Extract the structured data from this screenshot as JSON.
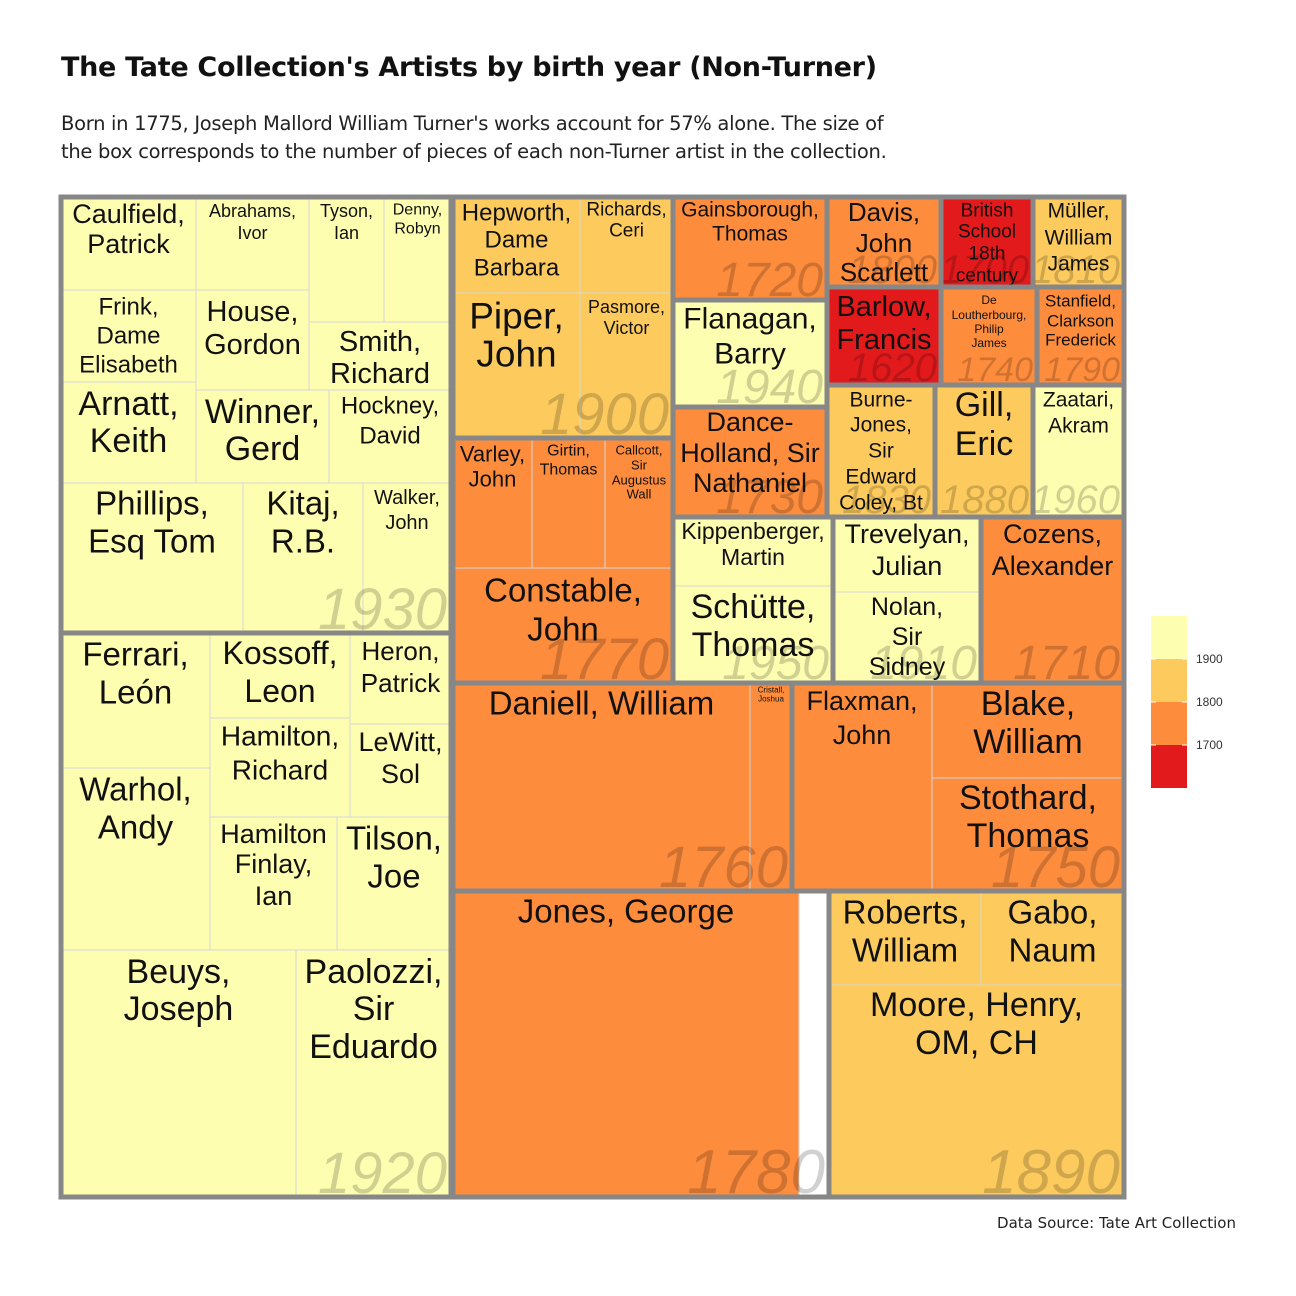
{
  "chart_data": {
    "type": "treemap",
    "title": "The Tate Collection's Artists by birth year (Non-Turner)",
    "subtitle": [
      "Born in 1775, Joseph Mallord William Turner's works account for 57% alone. The size of",
      "the box corresponds to the number of pieces of each non-Turner artist in the collection."
    ],
    "caption": "Data Source: Tate Art Collection",
    "legend": {
      "placement": "right",
      "breaks": [
        "1900",
        "1800",
        "1700"
      ],
      "colors": [
        "#fefeb0",
        "#fdcb5d",
        "#fd8c3c",
        "#e31a1c"
      ]
    },
    "groups": [
      {
        "decade": "1930",
        "color": "#fefeb0",
        "artists": [
          "Caulfield, Patrick",
          "Abrahams, Ivor",
          "Tyson, Ian",
          "Denny, Robyn",
          "Frink, Dame Elisabeth",
          "House, Gordon",
          "Smith, Richard",
          "Arnatt, Keith",
          "Winner, Gerd",
          "Hockney, David",
          "Phillips, Esq Tom",
          "Kitaj, R.B.",
          "Walker, John"
        ]
      },
      {
        "decade": "1920",
        "color": "#fefeb0",
        "artists": [
          "Ferrari, León",
          "Kossoff, Leon",
          "Heron, Patrick",
          "Hamilton, Richard",
          "LeWitt, Sol",
          "Warhol, Andy",
          "Hamilton Finlay, Ian",
          "Tilson, Joe",
          "Beuys, Joseph",
          "Paolozzi, Sir Eduardo"
        ]
      },
      {
        "decade": "1900",
        "color": "#fdcb5d",
        "artists": [
          "Hepworth, Dame Barbara",
          "Richards, Ceri",
          "Piper, John",
          "Pasmore, Victor"
        ]
      },
      {
        "decade": "1770",
        "color": "#fd8c3c",
        "artists": [
          "Varley, John",
          "Girtin, Thomas",
          "Callcott, Sir Augustus Wall",
          "Constable, John"
        ]
      },
      {
        "decade": "1720",
        "color": "#fd8c3c",
        "artists": [
          "Gainsborough, Thomas"
        ]
      },
      {
        "decade": "1940",
        "color": "#fefeb0",
        "artists": [
          "Flanagan, Barry"
        ]
      },
      {
        "decade": "1730",
        "color": "#fd8c3c",
        "artists": [
          "Dance-Holland, Sir Nathaniel"
        ]
      },
      {
        "decade": "1950",
        "color": "#fefeb0",
        "artists": [
          "Kippenberger, Martin",
          "Schütte, Thomas"
        ]
      },
      {
        "decade": "1800",
        "color": "#fd8c3c",
        "artists": [
          "Davis, John Scarlett"
        ]
      },
      {
        "decade": "1700",
        "color": "#e31a1c",
        "artists": [
          "British School 18th century"
        ]
      },
      {
        "decade": "1810",
        "color": "#fdcb5d",
        "artists": [
          "Müller, William James"
        ]
      },
      {
        "decade": "1620",
        "color": "#e31a1c",
        "artists": [
          "Barlow, Francis"
        ]
      },
      {
        "decade": "1740",
        "color": "#fd8c3c",
        "artists": [
          "De Loutherbourg, Philip James"
        ]
      },
      {
        "decade": "1790",
        "color": "#fd8c3c",
        "artists": [
          "Stanfield, Clarkson Frederick"
        ]
      },
      {
        "decade": "1830",
        "color": "#fdcb5d",
        "artists": [
          "Burne-Jones, Sir Edward Coley, Bt"
        ]
      },
      {
        "decade": "1880",
        "color": "#fdcb5d",
        "artists": [
          "Gill, Eric"
        ]
      },
      {
        "decade": "1960",
        "color": "#fefeb0",
        "artists": [
          "Zaatari, Akram"
        ]
      },
      {
        "decade": "1910",
        "color": "#fefeb0",
        "artists": [
          "Trevelyan, Julian",
          "Nolan, Sir Sidney"
        ]
      },
      {
        "decade": "1710",
        "color": "#fd8c3c",
        "artists": [
          "Cozens, Alexander"
        ]
      },
      {
        "decade": "1760",
        "color": "#fd8c3c",
        "artists": [
          "Daniell, William",
          "Cristall, Joshua"
        ]
      },
      {
        "decade": "1750",
        "color": "#fd8c3c",
        "artists": [
          "Flaxman, John",
          "Blake, William",
          "Stothard, Thomas"
        ]
      },
      {
        "decade": "1780",
        "color": "#fd8c3c",
        "artists": [
          "Jones, George"
        ]
      },
      {
        "decade": "1890",
        "color": "#fdcb5d",
        "artists": [
          "Roberts, William",
          "Gabo, Naum",
          "Moore, Henry, OM, CH"
        ]
      }
    ]
  }
}
